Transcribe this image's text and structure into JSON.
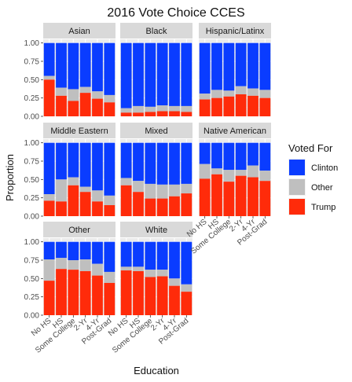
{
  "chart_data": {
    "type": "bar",
    "stacked": true,
    "title": "2016 Vote Choice CCES",
    "xlabel": "Education",
    "ylabel": "Proportion",
    "ylim": [
      0,
      1.05
    ],
    "yticks": [
      "0.00",
      "0.25",
      "0.50",
      "0.75",
      "1.00"
    ],
    "categories": [
      "No HS",
      "HS",
      "Some College",
      "2-Yr",
      "4-Yr",
      "Post-Grad"
    ],
    "legend": {
      "title": "Voted For",
      "position": "right",
      "entries": [
        {
          "name": "Clinton",
          "color": "#0a3cff"
        },
        {
          "name": "Other",
          "color": "#bfbfbf"
        },
        {
          "name": "Trump",
          "color": "#ff2b0a"
        }
      ]
    },
    "facets": [
      {
        "name": "Asian",
        "trump": [
          0.5,
          0.28,
          0.21,
          0.32,
          0.24,
          0.19
        ],
        "other": [
          0.05,
          0.11,
          0.16,
          0.08,
          0.1,
          0.1
        ]
      },
      {
        "name": "Black",
        "trump": [
          0.05,
          0.05,
          0.06,
          0.07,
          0.07,
          0.06
        ],
        "other": [
          0.06,
          0.09,
          0.07,
          0.08,
          0.07,
          0.08
        ]
      },
      {
        "name": "Hispanic/Latinx",
        "trump": [
          0.23,
          0.25,
          0.27,
          0.3,
          0.28,
          0.25
        ],
        "other": [
          0.08,
          0.11,
          0.08,
          0.11,
          0.1,
          0.11
        ]
      },
      {
        "name": "Middle Eastern",
        "trump": [
          0.21,
          0.2,
          0.42,
          0.33,
          0.2,
          0.15
        ],
        "other": [
          0.09,
          0.3,
          0.11,
          0.07,
          0.15,
          0.13
        ]
      },
      {
        "name": "Mixed",
        "trump": [
          0.42,
          0.33,
          0.24,
          0.24,
          0.27,
          0.31
        ],
        "other": [
          0.1,
          0.15,
          0.2,
          0.19,
          0.16,
          0.13
        ]
      },
      {
        "name": "Native American",
        "trump": [
          0.51,
          0.57,
          0.47,
          0.55,
          0.53,
          0.48
        ],
        "other": [
          0.2,
          0.08,
          0.16,
          0.08,
          0.16,
          0.14
        ]
      },
      {
        "name": "Other",
        "trump": [
          0.47,
          0.63,
          0.62,
          0.6,
          0.54,
          0.44
        ],
        "other": [
          0.29,
          0.15,
          0.13,
          0.16,
          0.16,
          0.15
        ]
      },
      {
        "name": "White",
        "trump": [
          0.61,
          0.6,
          0.52,
          0.53,
          0.4,
          0.32
        ],
        "other": [
          0.05,
          0.06,
          0.1,
          0.09,
          0.1,
          0.1
        ]
      }
    ]
  }
}
